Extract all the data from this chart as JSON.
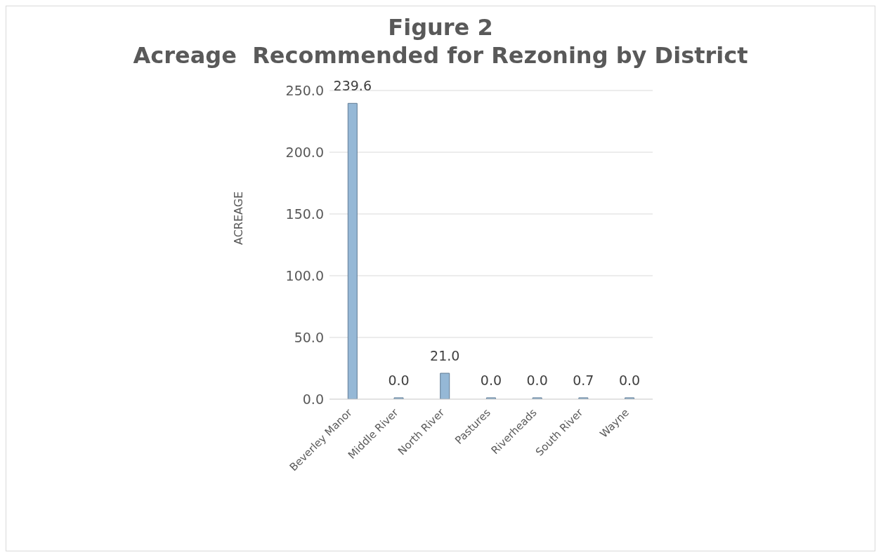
{
  "chart_data": {
    "type": "bar",
    "title": "Figure 2\nAcreage  Recommended for Rezoning by District",
    "ylabel": "ACREAGE",
    "categories": [
      "Beverley Manor",
      "Middle River",
      "North River",
      "Pastures",
      "Riverheads",
      "South River",
      "Wayne"
    ],
    "values": [
      239.6,
      0,
      21,
      0,
      0,
      0.7,
      0
    ],
    "value_labels": [
      "239.6",
      "0.0",
      "21.0",
      "0.0",
      "0.0",
      "0.7",
      "0.0"
    ],
    "color": "#95b8d6",
    "ylim": [
      0,
      250
    ],
    "yticks": [
      {
        "value": 0,
        "label": "0.0"
      },
      {
        "value": 50,
        "label": "50.0"
      },
      {
        "value": 100,
        "label": "100.0"
      },
      {
        "value": 150,
        "label": "150.0"
      },
      {
        "value": 200,
        "label": "200.0"
      },
      {
        "value": 250,
        "label": "250.0"
      }
    ],
    "grid": "y",
    "legend": false
  }
}
